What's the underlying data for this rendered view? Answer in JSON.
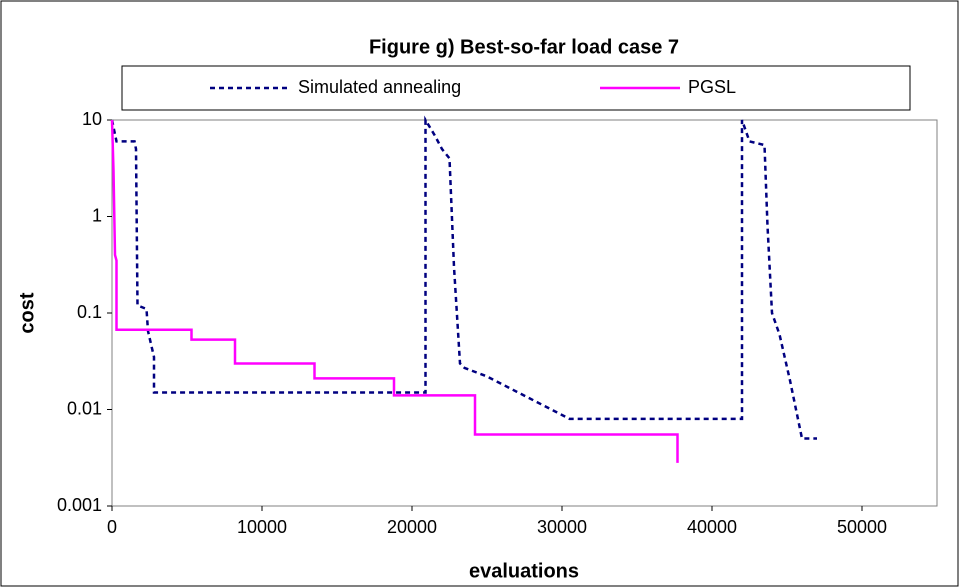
{
  "chart_data": {
    "type": "line",
    "title": "Figure g) Best-so-far load case 7",
    "x_label": "evaluations",
    "y_label": "cost",
    "xlim": [
      0,
      55000
    ],
    "xticks": [
      0,
      10000,
      20000,
      30000,
      40000,
      50000
    ],
    "ylim": [
      0.001,
      10
    ],
    "yticks": [
      10,
      1,
      0.1,
      0.01,
      0.001
    ],
    "yscale": "log",
    "legend": "top",
    "series": [
      {
        "name": "Simulated annealing",
        "color": "#000080",
        "dash": "5 4",
        "x": [
          0,
          300,
          1500,
          1600,
          1700,
          2300,
          2400,
          2800,
          2800,
          20900,
          20900,
          21500,
          22000,
          22500,
          22800,
          23200,
          23500,
          25000,
          30500,
          42000,
          42000,
          42500,
          43500,
          43700,
          44000,
          44500,
          45200,
          46000,
          47000
        ],
        "values": [
          10,
          6,
          6,
          5,
          0.12,
          0.11,
          0.065,
          0.035,
          0.015,
          0.015,
          10,
          7,
          5,
          4,
          0.3,
          0.03,
          0.027,
          0.022,
          0.008,
          0.008,
          10,
          6,
          5.5,
          0.8,
          0.1,
          0.06,
          0.02,
          0.005,
          0.005
        ]
      },
      {
        "name": "PGSL",
        "color": "#ff00ff",
        "dash": "none",
        "x": [
          0,
          100,
          200,
          300,
          300,
          5300,
          5300,
          8200,
          8200,
          13500,
          13500,
          18800,
          18800,
          24200,
          24200,
          37700,
          37700
        ],
        "values": [
          10,
          3,
          0.4,
          0.35,
          0.067,
          0.067,
          0.053,
          0.053,
          0.03,
          0.03,
          0.021,
          0.021,
          0.014,
          0.014,
          0.0055,
          0.0055,
          0.0028
        ]
      }
    ]
  }
}
